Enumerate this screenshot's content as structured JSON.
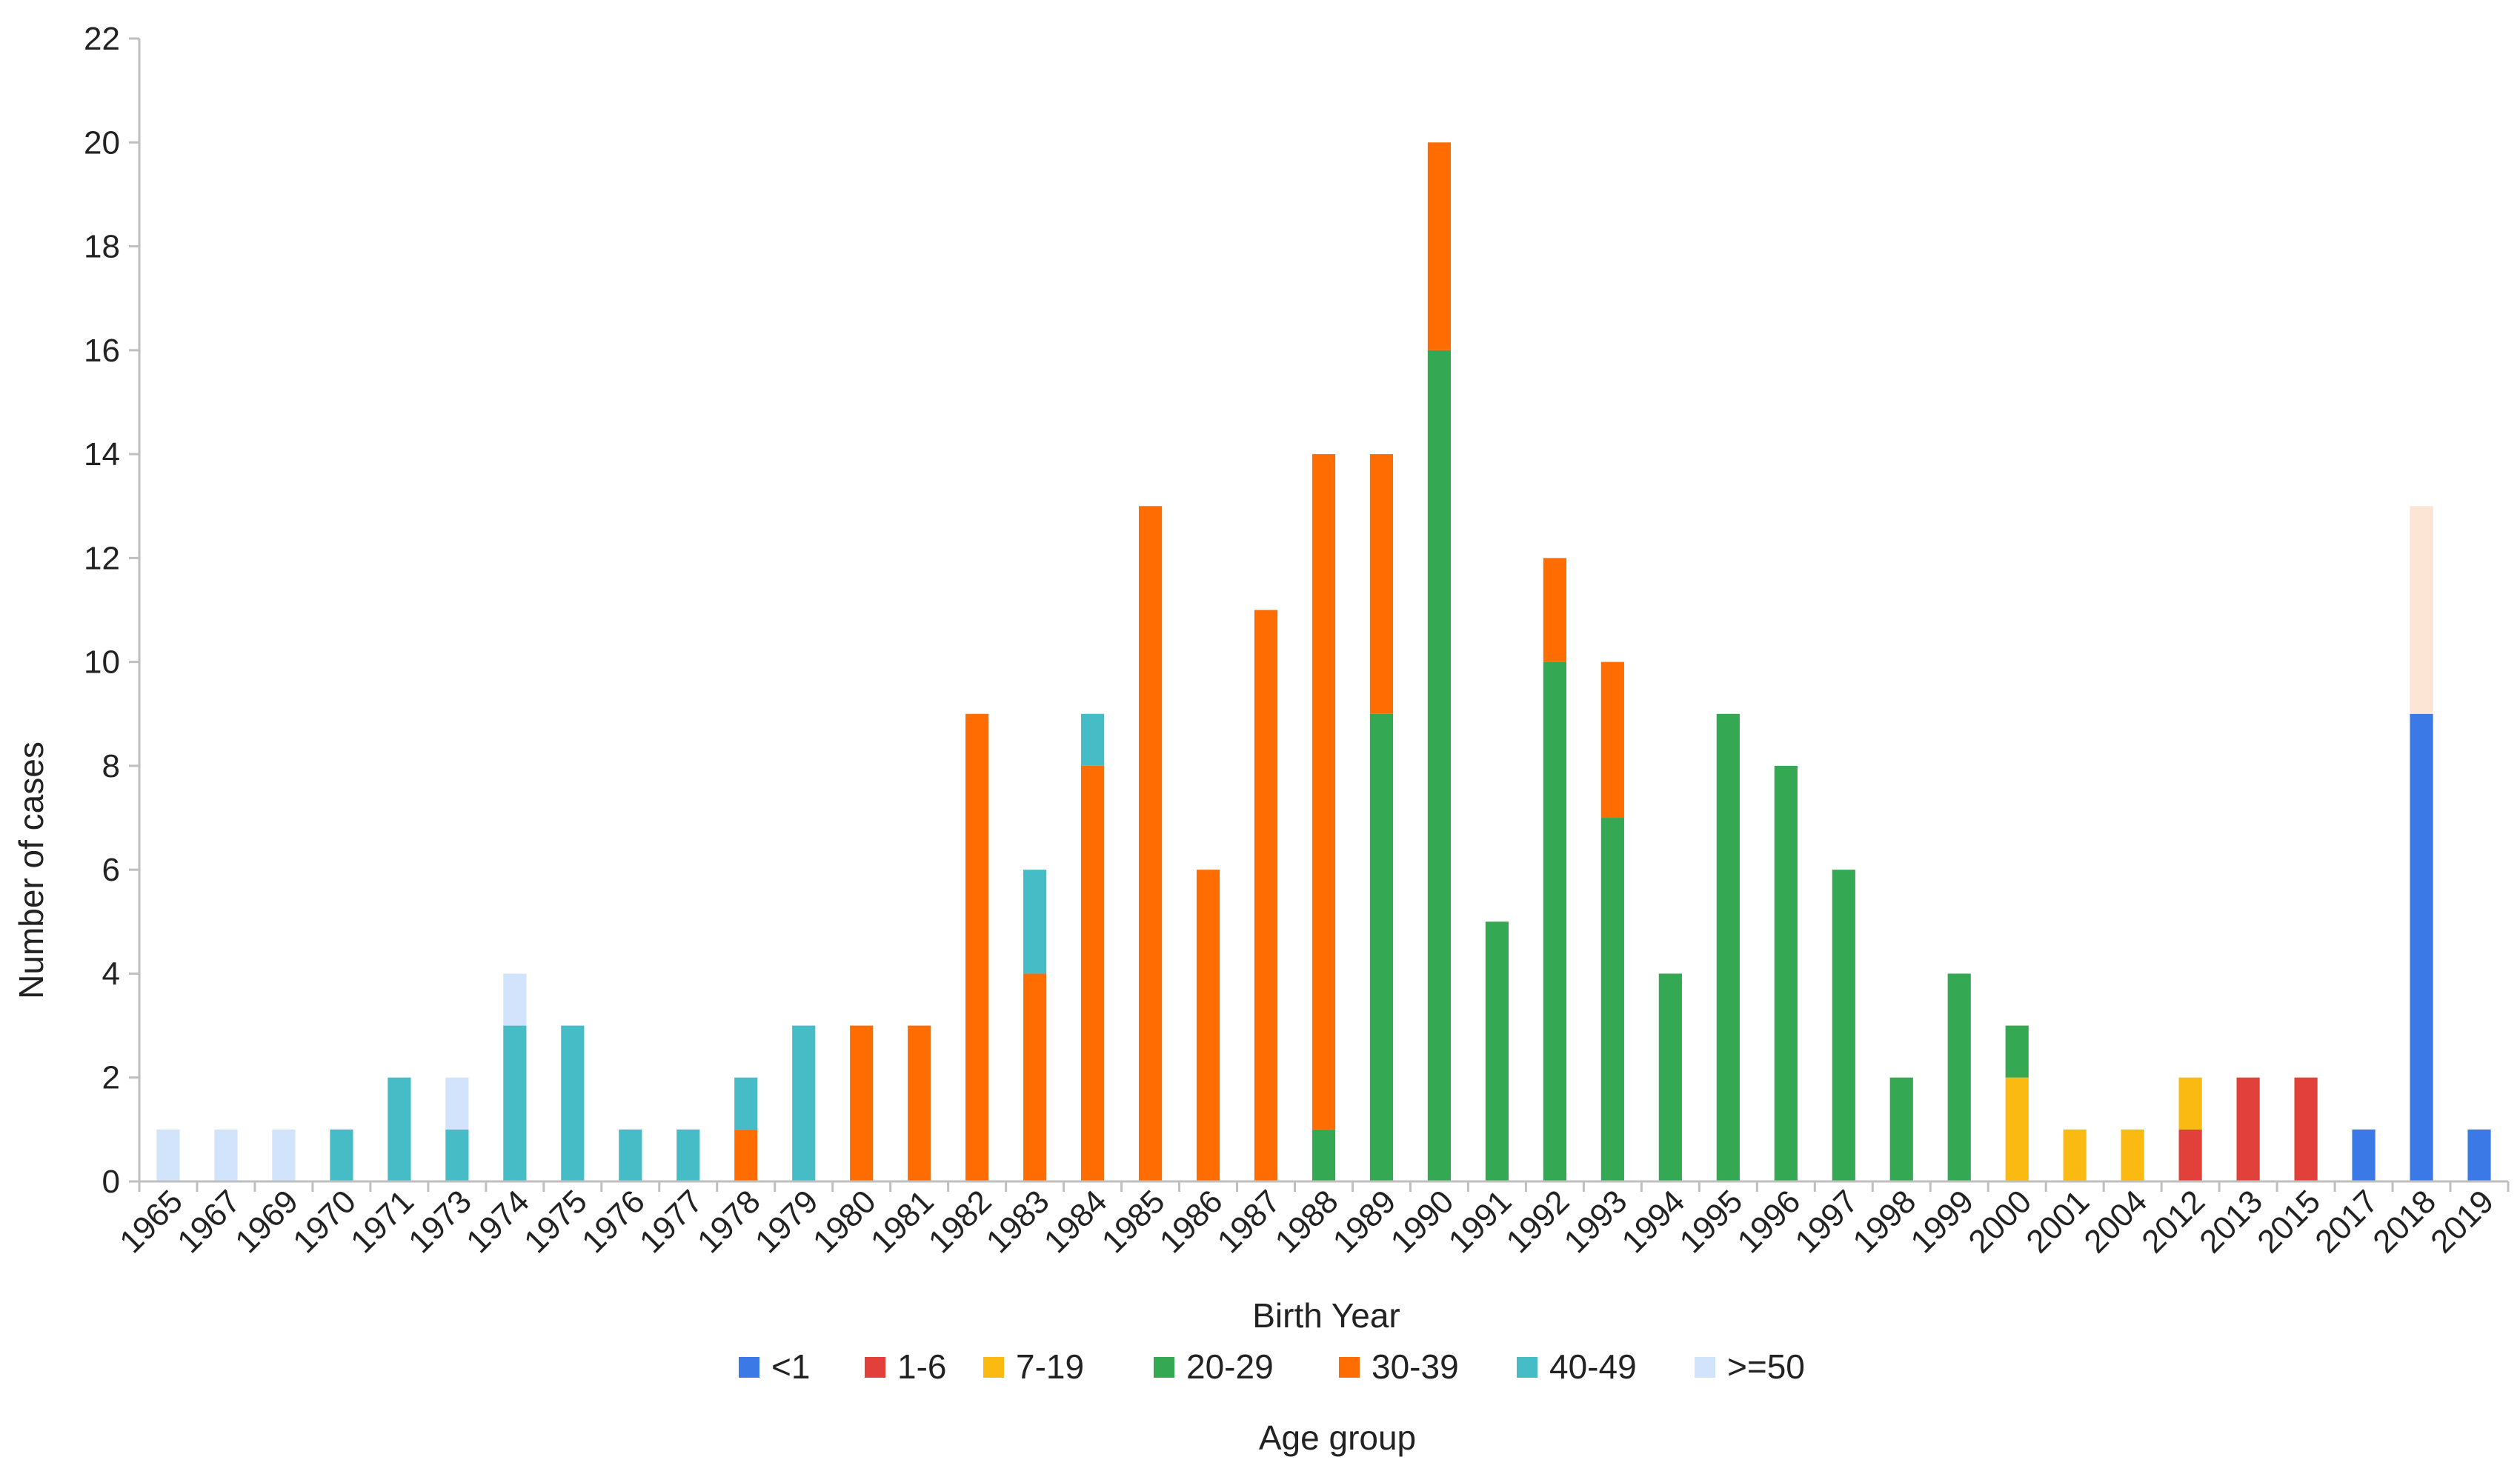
{
  "chart_data": {
    "type": "bar",
    "stacked": true,
    "xlabel": "Birth Year",
    "ylabel": "Number  of cases",
    "legend_title": "Age group",
    "legend_position": "bottom",
    "ylim": [
      0,
      22
    ],
    "yticks": [
      0,
      2,
      4,
      6,
      8,
      10,
      12,
      14,
      16,
      18,
      20,
      22
    ],
    "grid": false,
    "categories": [
      "1965",
      "1967",
      "1969",
      "1970",
      "1971",
      "1973",
      "1974",
      "1975",
      "1976",
      "1977",
      "1978",
      "1979",
      "1980",
      "1981",
      "1982",
      "1983",
      "1984",
      "1985",
      "1986",
      "1987",
      "1988",
      "1989",
      "1990",
      "1991",
      "1992",
      "1993",
      "1994",
      "1995",
      "1996",
      "1997",
      "1998",
      "1999",
      "2000",
      "2001",
      "2004",
      "2012",
      "2013",
      "2015",
      "2017",
      "2018",
      "2019"
    ],
    "series": [
      {
        "name": "<1",
        "color": "#3b7ae6",
        "values": [
          0,
          0,
          0,
          0,
          0,
          0,
          0,
          0,
          0,
          0,
          0,
          0,
          0,
          0,
          0,
          0,
          0,
          0,
          0,
          0,
          0,
          0,
          0,
          0,
          0,
          0,
          0,
          0,
          0,
          0,
          0,
          0,
          0,
          0,
          0,
          0,
          0,
          0,
          1,
          9,
          1
        ]
      },
      {
        "name": "1-6",
        "color": "#e2403a",
        "values": [
          0,
          0,
          0,
          0,
          0,
          0,
          0,
          0,
          0,
          0,
          0,
          0,
          0,
          0,
          0,
          0,
          0,
          0,
          0,
          0,
          0,
          0,
          0,
          0,
          0,
          0,
          0,
          0,
          0,
          0,
          0,
          0,
          0,
          0,
          0,
          1,
          2,
          2,
          0,
          0,
          0
        ]
      },
      {
        "name": "7-19",
        "color": "#fbba12",
        "values": [
          0,
          0,
          0,
          0,
          0,
          0,
          0,
          0,
          0,
          0,
          0,
          0,
          0,
          0,
          0,
          0,
          0,
          0,
          0,
          0,
          0,
          0,
          0,
          0,
          0,
          0,
          0,
          0,
          0,
          0,
          0,
          0,
          2,
          1,
          1,
          1,
          0,
          0,
          0,
          0,
          0
        ]
      },
      {
        "name": "20-29",
        "color": "#35a853",
        "values": [
          0,
          0,
          0,
          0,
          0,
          0,
          0,
          0,
          0,
          0,
          0,
          0,
          0,
          0,
          0,
          0,
          0,
          0,
          0,
          0,
          1,
          9,
          16,
          5,
          10,
          7,
          4,
          9,
          8,
          6,
          2,
          4,
          1,
          0,
          0,
          0,
          0,
          0,
          0,
          0,
          0
        ]
      },
      {
        "name": "30-39",
        "color": "#ff6d02",
        "values": [
          0,
          0,
          0,
          0,
          0,
          0,
          0,
          0,
          0,
          0,
          1,
          0,
          3,
          3,
          9,
          4,
          8,
          13,
          6,
          11,
          13,
          5,
          4,
          0,
          2,
          3,
          0,
          0,
          0,
          0,
          0,
          0,
          0,
          0,
          0,
          0,
          0,
          0,
          0,
          0,
          0
        ]
      },
      {
        "name": "40-49",
        "color": "#46bdc6",
        "values": [
          0,
          0,
          0,
          1,
          2,
          1,
          3,
          3,
          1,
          1,
          1,
          3,
          0,
          0,
          0,
          2,
          1,
          0,
          0,
          0,
          0,
          0,
          0,
          0,
          0,
          0,
          0,
          0,
          0,
          0,
          0,
          0,
          0,
          0,
          0,
          0,
          0,
          0,
          0,
          0,
          0
        ]
      },
      {
        "name": ">=50",
        "color": "#d2e3fc",
        "values": [
          1,
          1,
          1,
          0,
          0,
          1,
          1,
          0,
          0,
          0,
          0,
          0,
          0,
          0,
          0,
          0,
          0,
          0,
          0,
          0,
          0,
          0,
          0,
          0,
          0,
          0,
          0,
          0,
          0,
          0,
          0,
          0,
          0,
          0,
          0,
          0,
          0,
          0,
          0,
          0,
          0
        ]
      }
    ],
    "unlabeled_segments": [
      {
        "category": "2018",
        "value": 4,
        "color": "#fce5d4"
      }
    ]
  }
}
